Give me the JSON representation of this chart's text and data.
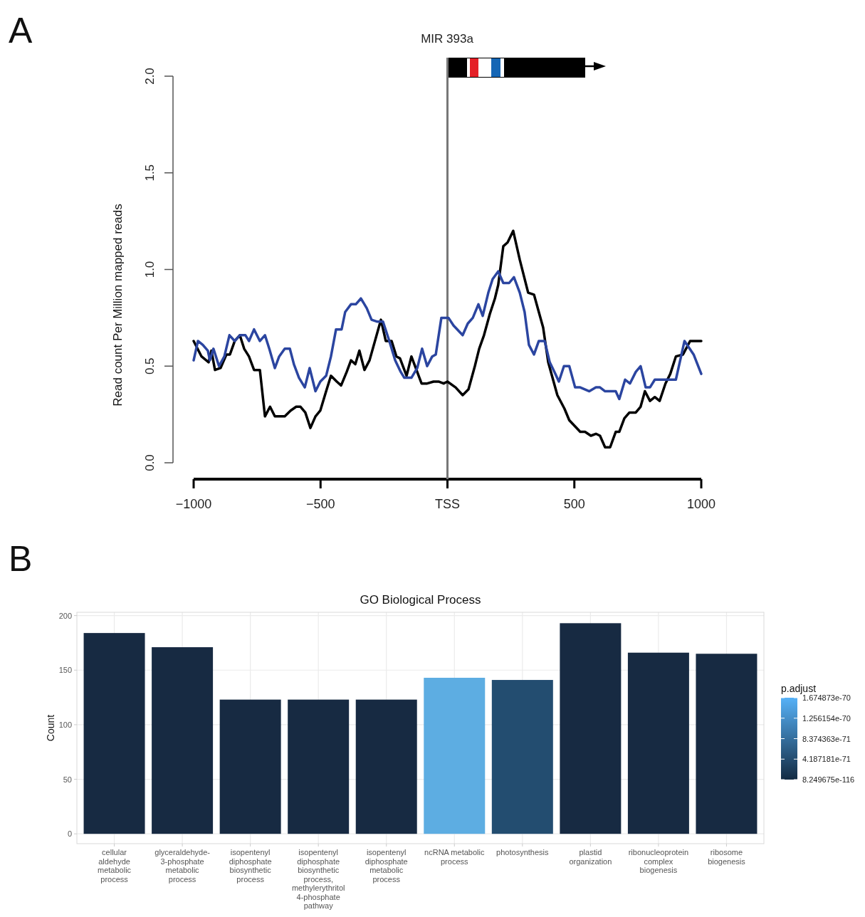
{
  "chart_data": [
    {
      "type": "line",
      "title": "MIR 393a",
      "ylabel": "Read count Per Million mapped reads",
      "annotations": [
        "A"
      ],
      "xlim": [
        -1000,
        1000
      ],
      "ylim": [
        0,
        2
      ],
      "xticks": [
        {
          "value": -1000,
          "label": "−1000"
        },
        {
          "value": -500,
          "label": "−500"
        },
        {
          "value": 0,
          "label": "TSS"
        },
        500,
        1000
      ],
      "yticks": [
        {
          "value": 0,
          "label": "0.0"
        },
        0.5,
        {
          "value": 1,
          "label": "1.0"
        },
        1.5,
        {
          "value": 2,
          "label": "2.0"
        }
      ],
      "ref_lines": [
        {
          "axis": "x",
          "value": 0,
          "label": null,
          "color": "#777777"
        }
      ],
      "series": [
        {
          "color": "#000000",
          "x": [
            -1000,
            -969,
            -941,
            -930,
            -916,
            -894,
            -871,
            -857,
            -838,
            -818,
            -801,
            -782,
            -762,
            -739,
            -719,
            -699,
            -680,
            -641,
            -618,
            -596,
            -579,
            -560,
            -540,
            -520,
            -501,
            -478,
            -459,
            -436,
            -419,
            -397,
            -380,
            -363,
            -347,
            -327,
            -307,
            -262,
            -243,
            -220,
            -201,
            -187,
            -161,
            -142,
            -102,
            -80,
            -55,
            -35,
            -15,
            0,
            32,
            60,
            83,
            108,
            125,
            144,
            167,
            187,
            200,
            220,
            237,
            259,
            285,
            318,
            341,
            360,
            377,
            397,
            433,
            461,
            480,
            523,
            542,
            565,
            585,
            601,
            621,
            641,
            663,
            677,
            697,
            717,
            742,
            761,
            778,
            798,
            817,
            836,
            859,
            878,
            900,
            928,
            956,
            1000
          ],
          "values": [
            0.63,
            0.55,
            0.52,
            0.58,
            0.48,
            0.49,
            0.56,
            0.56,
            0.63,
            0.66,
            0.59,
            0.55,
            0.48,
            0.48,
            0.24,
            0.29,
            0.24,
            0.24,
            0.27,
            0.29,
            0.29,
            0.26,
            0.18,
            0.24,
            0.27,
            0.37,
            0.45,
            0.42,
            0.4,
            0.47,
            0.53,
            0.51,
            0.58,
            0.48,
            0.53,
            0.74,
            0.63,
            0.63,
            0.55,
            0.54,
            0.45,
            0.55,
            0.41,
            0.41,
            0.42,
            0.42,
            0.41,
            0.42,
            0.39,
            0.35,
            0.38,
            0.5,
            0.59,
            0.66,
            0.77,
            0.85,
            0.92,
            1.12,
            1.14,
            1.2,
            1.05,
            0.88,
            0.87,
            0.78,
            0.7,
            0.52,
            0.35,
            0.28,
            0.22,
            0.16,
            0.16,
            0.14,
            0.15,
            0.14,
            0.08,
            0.08,
            0.16,
            0.16,
            0.23,
            0.26,
            0.26,
            0.29,
            0.37,
            0.32,
            0.34,
            0.32,
            0.41,
            0.46,
            0.55,
            0.56,
            0.63,
            0.63
          ]
        },
        {
          "color": "#2b45a0",
          "x": [
            -1000,
            -983,
            -964,
            -944,
            -936,
            -922,
            -900,
            -879,
            -859,
            -838,
            -818,
            -796,
            -782,
            -762,
            -739,
            -719,
            -702,
            -680,
            -663,
            -641,
            -621,
            -605,
            -585,
            -562,
            -543,
            -520,
            -501,
            -478,
            -459,
            -439,
            -417,
            -403,
            -380,
            -361,
            -341,
            -318,
            -299,
            -276,
            -254,
            -229,
            -206,
            -184,
            -170,
            -142,
            -119,
            -100,
            -80,
            -60,
            -46,
            -24,
            4,
            24,
            60,
            80,
            100,
            122,
            139,
            161,
            178,
            200,
            220,
            243,
            262,
            285,
            304,
            321,
            341,
            360,
            383,
            403,
            425,
            439,
            459,
            480,
            503,
            523,
            559,
            585,
            601,
            621,
            663,
            677,
            700,
            719,
            742,
            761,
            781,
            798,
            817,
            900,
            934,
            970,
            1000
          ],
          "values": [
            0.53,
            0.63,
            0.61,
            0.58,
            0.53,
            0.59,
            0.5,
            0.55,
            0.66,
            0.63,
            0.66,
            0.66,
            0.63,
            0.69,
            0.63,
            0.66,
            0.59,
            0.49,
            0.55,
            0.59,
            0.59,
            0.51,
            0.44,
            0.39,
            0.49,
            0.37,
            0.42,
            0.45,
            0.55,
            0.69,
            0.69,
            0.78,
            0.82,
            0.82,
            0.85,
            0.8,
            0.74,
            0.73,
            0.73,
            0.63,
            0.53,
            0.47,
            0.44,
            0.44,
            0.49,
            0.59,
            0.5,
            0.55,
            0.56,
            0.75,
            0.75,
            0.71,
            0.66,
            0.72,
            0.75,
            0.82,
            0.76,
            0.88,
            0.95,
            0.99,
            0.93,
            0.93,
            0.96,
            0.88,
            0.78,
            0.61,
            0.56,
            0.63,
            0.63,
            0.52,
            0.46,
            0.42,
            0.5,
            0.5,
            0.39,
            0.39,
            0.37,
            0.39,
            0.39,
            0.37,
            0.37,
            0.33,
            0.43,
            0.41,
            0.47,
            0.5,
            0.39,
            0.39,
            0.43,
            0.43,
            0.63,
            0.56,
            0.46
          ]
        }
      ]
    },
    {
      "type": "bar",
      "title": "GO Biological Process",
      "ylabel": "Count",
      "annotations": [
        "B"
      ],
      "categories": [
        "cellular aldehyde metabolic process",
        "glyceraldehyde-3-phosphate metabolic process",
        "isopentenyl diphosphate biosynthetic process",
        "isopentenyl diphosphate biosynthetic process, methylerythritol 4-phosphate pathway",
        "isopentenyl diphosphate metabolic process",
        "ncRNA metabolic process",
        "photosynthesis",
        "plastid organization",
        "ribonucleoprotein complex biogenesis",
        "ribosome biogenesis"
      ],
      "values": [
        184,
        171,
        123,
        123,
        123,
        143,
        141,
        193,
        166,
        165
      ],
      "colors": [
        "#172a42",
        "#172a42",
        "#172a42",
        "#172a42",
        "#172a42",
        "#5dade2",
        "#234d70",
        "#172a42",
        "#172a42",
        "#172a42"
      ],
      "ylim": [
        -9,
        203
      ],
      "yticks": [
        0,
        50,
        100,
        150,
        200
      ],
      "grid": true,
      "clabel": "p.adjust",
      "clim": [
        8.249675e-116,
        1.674873e-70
      ],
      "cticks": [
        {
          "value": 8.249675e-116,
          "label": "8.249675e-116"
        },
        {
          "value": 4.187181e-71,
          "label": "4.187181e-71"
        },
        {
          "value": 8.374363e-71,
          "label": "8.374363e-71"
        },
        {
          "value": 1.256154e-70,
          "label": "1.256154e-70"
        },
        {
          "value": 1.674873e-70,
          "label": "1.674873e-70"
        }
      ]
    }
  ]
}
